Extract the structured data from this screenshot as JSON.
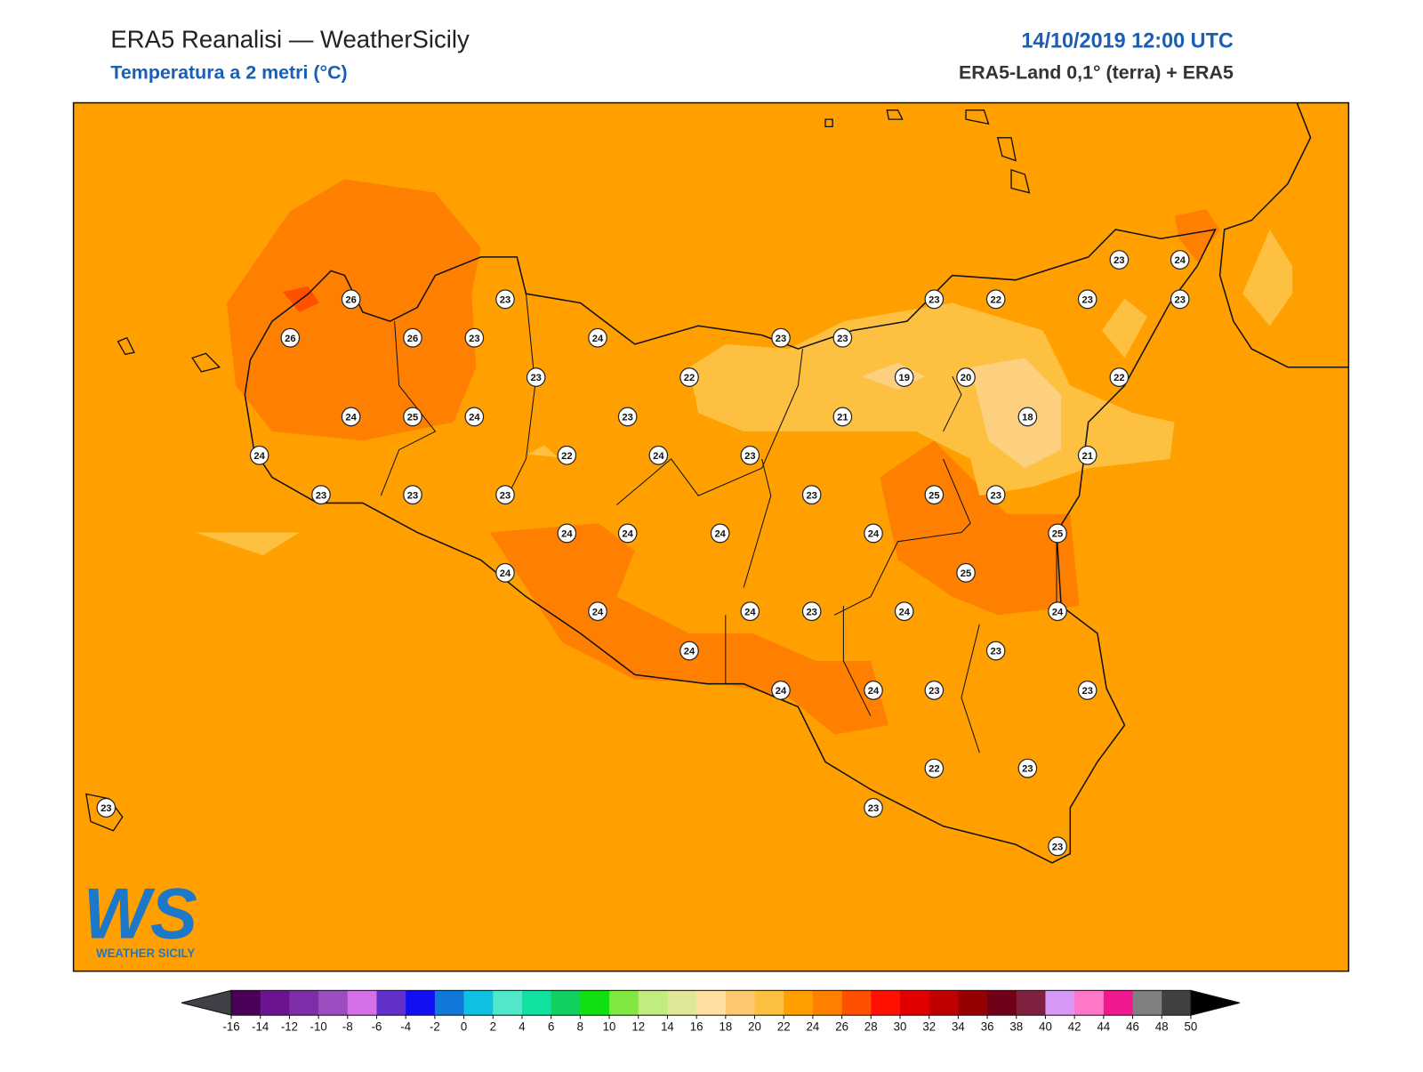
{
  "header": {
    "title": "ERA5 Reanalisi — WeatherSicily",
    "subtitle": "Temperatura a 2 metri (°C)",
    "date": "14/10/2019 12:00 UTC",
    "source": "ERA5-Land 0,1° (terra) + ERA5"
  },
  "logo": {
    "mark": "WS",
    "name": "WEATHER SICILY"
  },
  "stations": [
    23,
    24,
    26,
    23,
    23,
    22,
    23,
    23,
    26,
    26,
    23,
    24,
    23,
    23,
    23,
    22,
    19,
    20,
    22,
    24,
    25,
    24,
    23,
    21,
    18,
    24,
    22,
    24,
    23,
    21,
    23,
    23,
    23,
    23,
    25,
    23,
    24,
    24,
    24,
    24,
    25,
    24,
    25,
    24,
    24,
    23,
    24,
    24,
    23,
    24,
    24,
    24,
    23,
    23,
    22,
    23,
    23,
    23,
    23
  ],
  "colorbar": {
    "ticks": [
      -16,
      -14,
      -12,
      -10,
      -8,
      -6,
      -4,
      -2,
      0,
      2,
      4,
      6,
      8,
      10,
      12,
      14,
      16,
      18,
      20,
      22,
      24,
      26,
      28,
      30,
      32,
      34,
      36,
      38,
      40,
      42,
      44,
      46,
      48,
      50
    ],
    "colors": [
      "#4a0057",
      "#6a1490",
      "#7e2ea8",
      "#9b4ec0",
      "#d670e8",
      "#6030c8",
      "#1010f0",
      "#1078d8",
      "#10c0e0",
      "#50e8c8",
      "#10e0a0",
      "#10d060",
      "#10e010",
      "#80e840",
      "#c0ec80",
      "#e0e898",
      "#ffe0a0",
      "#fdc870",
      "#fdc040",
      "#ffa000",
      "#ff8000",
      "#ff5000",
      "#ff1000",
      "#e00000",
      "#c00000",
      "#960000",
      "#700018",
      "#802040",
      "#d898f8",
      "#ff78c8",
      "#f01890",
      "#808080",
      "#404040"
    ],
    "under_color": "#404048",
    "over_color": "#000000"
  }
}
